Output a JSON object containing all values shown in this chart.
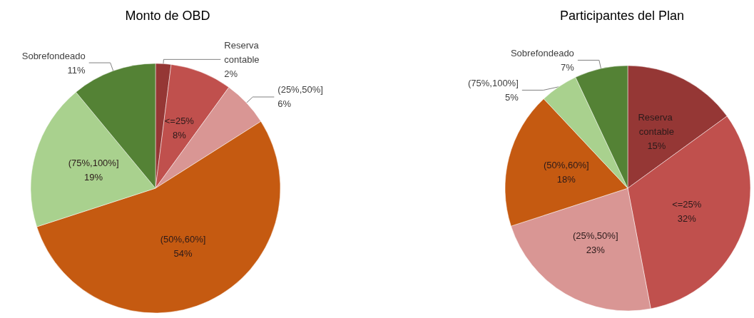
{
  "chart_data": [
    {
      "type": "pie",
      "title": "Monto de OBD",
      "categories": [
        "Reserva contable",
        "<=25%",
        "(25%,50%]",
        "(50%,60%]",
        "(75%,100%]",
        "Sobrefondeado"
      ],
      "values": [
        2,
        8,
        6,
        54,
        19,
        11
      ],
      "value_labels": [
        "2%",
        "8%",
        "6%",
        "54%",
        "19%",
        "11%"
      ],
      "colors": [
        "#953735",
        "#c0504d",
        "#d99694",
        "#c55a11",
        "#a9d18e",
        "#548235"
      ]
    },
    {
      "type": "pie",
      "title": "Participantes del Plan",
      "categories": [
        "Reserva contable",
        "<=25%",
        "(25%,50%]",
        "(50%,60%]",
        "(75%,100%]",
        "Sobrefondeado"
      ],
      "values": [
        15,
        32,
        23,
        18,
        5,
        7
      ],
      "value_labels": [
        "15%",
        "32%",
        "23%",
        "18%",
        "5%",
        "7%"
      ],
      "colors": [
        "#953735",
        "#c0504d",
        "#d99694",
        "#c55a11",
        "#a9d18e",
        "#548235"
      ]
    }
  ]
}
